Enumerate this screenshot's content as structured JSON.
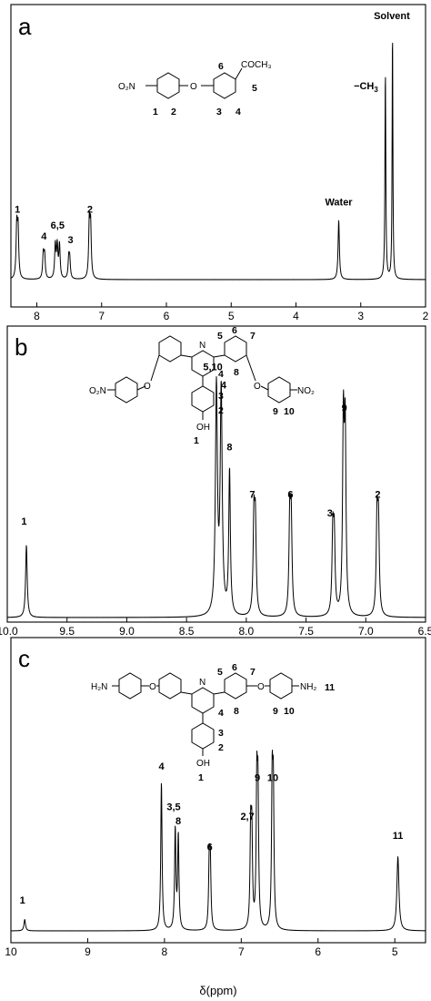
{
  "figure": {
    "x_axis_title": "δ(ppm)"
  },
  "chart_data": [
    {
      "type": "line",
      "panel": "a",
      "x_ticks": [
        "8",
        "7",
        "6",
        "5",
        "4",
        "3",
        "2"
      ],
      "xlim": [
        8.4,
        2.0
      ],
      "x_reversed": true,
      "series": [
        {
          "peaks": [
            {
              "ppm": 8.3,
              "h": 0.95,
              "w": 0.012,
              "split": 0.02
            },
            {
              "ppm": 7.89,
              "h": 0.45,
              "w": 0.012,
              "split": 0.02
            },
            {
              "ppm": 7.7,
              "h": 0.62,
              "w": 0.012,
              "split": 0.03
            },
            {
              "ppm": 7.65,
              "h": 0.62,
              "w": 0.012,
              "split": 0.0
            },
            {
              "ppm": 7.5,
              "h": 0.36,
              "w": 0.012,
              "split": 0.015
            },
            {
              "ppm": 7.18,
              "h": 1.0,
              "w": 0.012,
              "split": 0.02
            },
            {
              "ppm": 3.34,
              "h": 1.1,
              "w": 0.012,
              "split": 0.0
            },
            {
              "ppm": 2.62,
              "h": 3.85,
              "w": 0.008,
              "split": 0.0
            },
            {
              "ppm": 2.51,
              "h": 4.6,
              "w": 0.007,
              "split": 0.0
            }
          ]
        }
      ],
      "ylim": [
        0,
        4.7
      ],
      "peak_labels": [
        {
          "text": "1",
          "ppm": 8.3,
          "y": 1.25
        },
        {
          "text": "4",
          "ppm": 7.89,
          "y": 0.75
        },
        {
          "text": "6,5",
          "ppm": 7.68,
          "y": 0.95
        },
        {
          "text": "3",
          "ppm": 7.48,
          "y": 0.68
        },
        {
          "text": "2",
          "ppm": 7.18,
          "y": 1.25
        },
        {
          "text": "Water",
          "ppm": 3.34,
          "y": 1.38
        },
        {
          "text": "−CH",
          "ppm": 2.92,
          "y": 3.55,
          "sub": "3"
        },
        {
          "text": "Solvent",
          "ppm": 2.52,
          "y": 4.85
        }
      ]
    },
    {
      "type": "line",
      "panel": "b",
      "x_ticks": [
        "10.0",
        "9.5",
        "9.0",
        "8.5",
        "8.0",
        "7.5",
        "7.0",
        "6.5"
      ],
      "xlim": [
        10.0,
        6.5
      ],
      "x_reversed": true,
      "series": [
        {
          "peaks": [
            {
              "ppm": 9.84,
              "h": 0.35,
              "w": 0.008,
              "split": 0.0
            },
            {
              "ppm": 8.25,
              "h": 1.1,
              "w": 0.01,
              "split": 0.0
            },
            {
              "ppm": 8.21,
              "h": 1.08,
              "w": 0.01,
              "split": 0.0
            },
            {
              "ppm": 8.14,
              "h": 0.7,
              "w": 0.008,
              "split": 0.0
            },
            {
              "ppm": 7.93,
              "h": 0.45,
              "w": 0.008,
              "split": 0.012
            },
            {
              "ppm": 7.63,
              "h": 0.46,
              "w": 0.008,
              "split": 0.012
            },
            {
              "ppm": 7.27,
              "h": 0.38,
              "w": 0.008,
              "split": 0.012
            },
            {
              "ppm": 7.18,
              "h": 0.9,
              "w": 0.008,
              "split": 0.015
            },
            {
              "ppm": 6.9,
              "h": 0.45,
              "w": 0.008,
              "split": 0.012
            }
          ]
        }
      ],
      "ylim": [
        0,
        1.25
      ],
      "peak_labels": [
        {
          "text": "1",
          "ppm": 9.86,
          "y": 0.45
        },
        {
          "text": "5,10",
          "ppm": 8.28,
          "y": 1.2
        },
        {
          "text": "4",
          "ppm": 8.19,
          "y": 1.11
        },
        {
          "text": "8",
          "ppm": 8.14,
          "y": 0.81
        },
        {
          "text": "7",
          "ppm": 7.95,
          "y": 0.58
        },
        {
          "text": "6",
          "ppm": 7.63,
          "y": 0.58
        },
        {
          "text": "3",
          "ppm": 7.3,
          "y": 0.49
        },
        {
          "text": "9",
          "ppm": 7.18,
          "y": 1.0
        },
        {
          "text": "2",
          "ppm": 6.9,
          "y": 0.58
        }
      ]
    },
    {
      "type": "line",
      "panel": "c",
      "x_ticks": [
        "10",
        "9",
        "8",
        "7",
        "6",
        "5"
      ],
      "xlim": [
        10.0,
        4.6
      ],
      "x_reversed": true,
      "series": [
        {
          "peaks": [
            {
              "ppm": 9.82,
              "h": 0.07,
              "w": 0.012,
              "split": 0.0
            },
            {
              "ppm": 8.04,
              "h": 0.92,
              "w": 0.01,
              "split": 0.0
            },
            {
              "ppm": 7.86,
              "h": 0.62,
              "w": 0.01,
              "split": 0.0
            },
            {
              "ppm": 7.82,
              "h": 0.58,
              "w": 0.01,
              "split": 0.0
            },
            {
              "ppm": 7.41,
              "h": 0.4,
              "w": 0.01,
              "split": 0.014
            },
            {
              "ppm": 6.87,
              "h": 0.58,
              "w": 0.01,
              "split": 0.015
            },
            {
              "ppm": 6.79,
              "h": 0.83,
              "w": 0.01,
              "split": 0.015
            },
            {
              "ppm": 6.59,
              "h": 0.85,
              "w": 0.01,
              "split": 0.015
            },
            {
              "ppm": 4.96,
              "h": 0.46,
              "w": 0.016,
              "split": 0.0
            }
          ]
        }
      ],
      "ylim": [
        0,
        1.0
      ],
      "peak_labels": [
        {
          "text": "1",
          "ppm": 9.85,
          "y": 0.17
        },
        {
          "text": "4",
          "ppm": 8.04,
          "y": 1.0
        },
        {
          "text": "3,5",
          "ppm": 7.88,
          "y": 0.75
        },
        {
          "text": "8",
          "ppm": 7.82,
          "y": 0.66
        },
        {
          "text": "6",
          "ppm": 7.41,
          "y": 0.5
        },
        {
          "text": "2,7",
          "ppm": 6.92,
          "y": 0.69
        },
        {
          "text": "9",
          "ppm": 6.79,
          "y": 0.93
        },
        {
          "text": "10",
          "ppm": 6.59,
          "y": 0.93
        },
        {
          "text": "11",
          "ppm": 4.96,
          "y": 0.57
        }
      ]
    }
  ],
  "panels": [
    {
      "letter": "a",
      "structure": {
        "no2": "O₂N",
        "acetyl": "COCH₃",
        "o": "O",
        "nums": [
          "1",
          "2",
          "3",
          "4",
          "5",
          "6"
        ]
      }
    },
    {
      "letter": "b",
      "structure": {
        "no2_left": "O₂N",
        "no2_right": "NO₂",
        "n": "N",
        "oh": "OH",
        "o_left": "O",
        "o_right": "O",
        "nums": [
          "1",
          "2",
          "3",
          "4",
          "5",
          "6",
          "7",
          "8",
          "9",
          "10"
        ]
      }
    },
    {
      "letter": "c",
      "structure": {
        "nh2_left": "H₂N",
        "nh2_right": "NH₂",
        "nh2_num": "11",
        "n": "N",
        "oh": "OH",
        "o_left": "O",
        "o_right": "O",
        "nums": [
          "1",
          "2",
          "3",
          "4",
          "5",
          "6",
          "7",
          "8",
          "9",
          "10"
        ]
      }
    }
  ]
}
